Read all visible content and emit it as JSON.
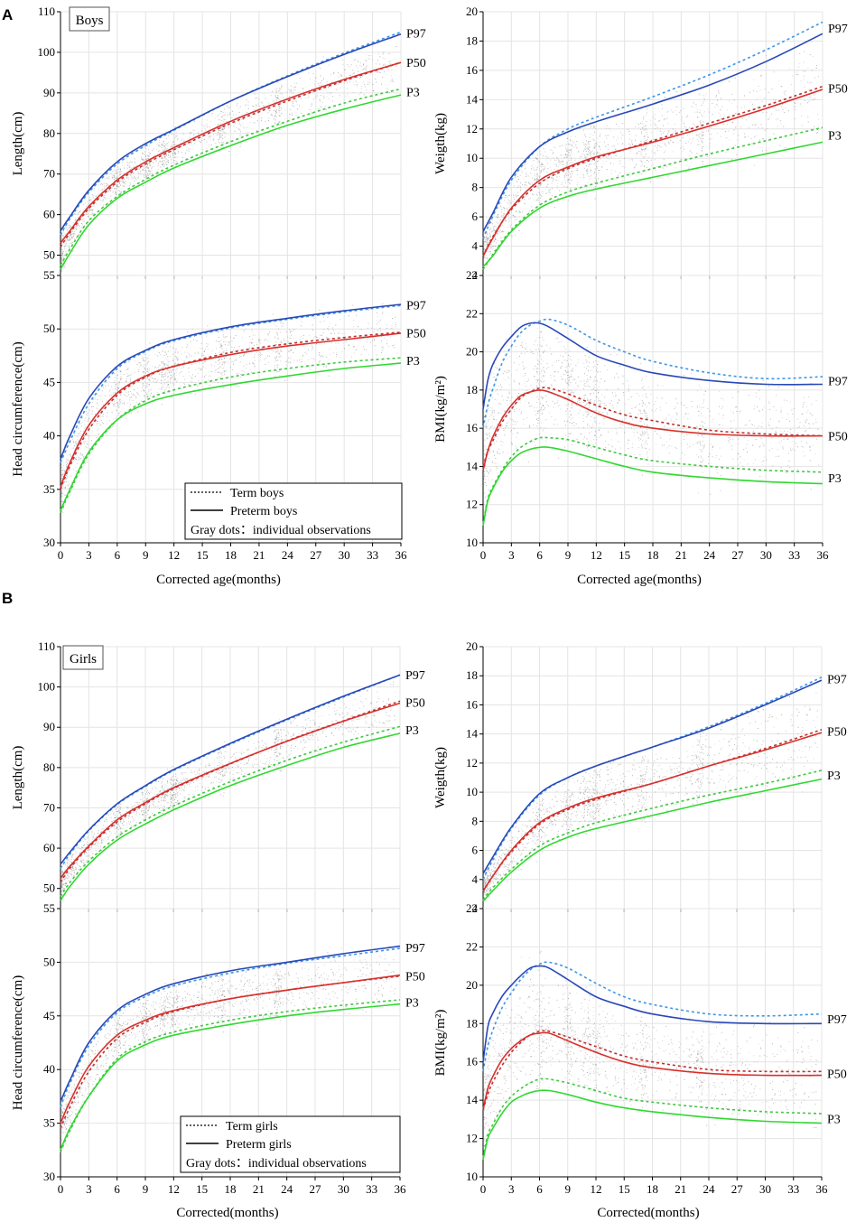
{
  "colors": {
    "p97": "#2848b8",
    "p97_term": "#3c96e6",
    "p50": "#d8302c",
    "p50_term": "#c03030",
    "p3": "#30d830",
    "p3_term": "#40c840",
    "dots": "#8a8a8a",
    "grid": "#e4e4e4",
    "axis": "#000000"
  },
  "figure": {
    "panel_A_letter": "A",
    "panel_B_letter": "B",
    "boys_label": "Boys",
    "girls_label": "Girls",
    "legend_boys": {
      "term": "Term boys",
      "preterm": "Preterm boys",
      "dots": "Gray dots：individual observations"
    },
    "legend_girls": {
      "term": "Term girls",
      "preterm": "Preterm girls",
      "dots": "Gray dots：individual observations"
    },
    "xlabel_A": "Corrected age(months)",
    "xlabel_B": "Corrected(months)"
  },
  "chart_data": [
    {
      "id": "boys_length",
      "type": "line",
      "title": "Boys",
      "ylabel": "Length(cm)",
      "xlim": [
        0,
        36
      ],
      "ylim": [
        45,
        110
      ],
      "yticks": [
        50,
        60,
        70,
        80,
        90,
        100,
        110
      ],
      "xticks": [
        0,
        3,
        6,
        9,
        12,
        15,
        18,
        21,
        24,
        27,
        30,
        33,
        36
      ],
      "x": [
        0,
        1,
        3,
        6,
        9,
        12,
        18,
        24,
        30,
        36
      ],
      "series": [
        {
          "name": "P97",
          "label": "P97",
          "preterm": [
            56.0,
            59.5,
            66.0,
            73.0,
            77.5,
            81.0,
            88.0,
            94.0,
            99.5,
            104.5
          ],
          "term": [
            55.0,
            59.0,
            65.5,
            72.5,
            77.0,
            80.8,
            88.0,
            94.2,
            99.8,
            105.0
          ]
        },
        {
          "name": "P50",
          "label": "P50",
          "preterm": [
            53.0,
            56.0,
            62.0,
            68.5,
            73.0,
            76.5,
            83.0,
            88.5,
            93.3,
            97.5
          ],
          "term": [
            52.0,
            55.5,
            61.5,
            68.0,
            72.5,
            76.0,
            82.5,
            88.0,
            93.0,
            97.5
          ]
        },
        {
          "name": "P3",
          "label": "P3",
          "preterm": [
            46.5,
            50.5,
            57.5,
            64.0,
            68.0,
            71.5,
            77.0,
            82.0,
            86.0,
            89.5
          ],
          "term": [
            47.5,
            51.5,
            58.5,
            64.5,
            68.7,
            72.2,
            78.0,
            83.0,
            87.5,
            91.0
          ]
        }
      ]
    },
    {
      "id": "boys_weight",
      "type": "line",
      "ylabel": "Weigth(kg)",
      "xlim": [
        0,
        36
      ],
      "ylim": [
        2,
        20
      ],
      "yticks": [
        2,
        4,
        6,
        8,
        10,
        12,
        14,
        16,
        18,
        20
      ],
      "xticks": [
        0,
        3,
        6,
        9,
        12,
        15,
        18,
        21,
        24,
        27,
        30,
        33,
        36
      ],
      "x": [
        0,
        1,
        3,
        6,
        9,
        12,
        18,
        24,
        30,
        36
      ],
      "series": [
        {
          "name": "P97",
          "label": "P97",
          "preterm": [
            5.0,
            6.2,
            8.7,
            10.8,
            11.8,
            12.5,
            13.7,
            15.0,
            16.6,
            18.5
          ],
          "term": [
            4.5,
            6.0,
            8.5,
            10.8,
            12.0,
            12.8,
            14.2,
            15.7,
            17.4,
            19.3
          ]
        },
        {
          "name": "P50",
          "label": "P50",
          "preterm": [
            3.3,
            4.5,
            6.6,
            8.5,
            9.4,
            10.1,
            11.1,
            12.2,
            13.4,
            14.7
          ],
          "term": [
            3.3,
            4.6,
            6.5,
            8.3,
            9.3,
            10.0,
            11.2,
            12.4,
            13.6,
            14.9
          ]
        },
        {
          "name": "P3",
          "label": "P3",
          "preterm": [
            2.6,
            3.3,
            5.0,
            6.6,
            7.4,
            7.9,
            8.7,
            9.5,
            10.3,
            11.1
          ],
          "term": [
            2.4,
            3.4,
            5.1,
            6.8,
            7.7,
            8.3,
            9.3,
            10.3,
            11.2,
            12.1
          ]
        }
      ]
    },
    {
      "id": "boys_head",
      "type": "line",
      "ylabel": "Head circumference(cm)",
      "xlim": [
        0,
        36
      ],
      "ylim": [
        30,
        55
      ],
      "yticks": [
        30,
        35,
        40,
        45,
        50,
        55
      ],
      "xticks": [
        0,
        3,
        6,
        9,
        12,
        15,
        18,
        21,
        24,
        27,
        30,
        33,
        36
      ],
      "x": [
        0,
        1,
        3,
        6,
        9,
        12,
        18,
        24,
        30,
        36
      ],
      "series": [
        {
          "name": "P97",
          "label": "P97",
          "preterm": [
            37.8,
            40.0,
            43.5,
            46.5,
            48.0,
            49.0,
            50.2,
            51.0,
            51.7,
            52.3
          ],
          "term": [
            37.5,
            39.5,
            43.0,
            46.3,
            47.9,
            48.9,
            50.1,
            50.9,
            51.6,
            52.2
          ]
        },
        {
          "name": "P50",
          "label": "P50",
          "preterm": [
            35.2,
            37.5,
            41.0,
            44.0,
            45.6,
            46.5,
            47.6,
            48.4,
            49.0,
            49.6
          ],
          "term": [
            35.0,
            37.2,
            40.6,
            43.8,
            45.5,
            46.5,
            47.8,
            48.6,
            49.2,
            49.7
          ]
        },
        {
          "name": "P3",
          "label": "P3",
          "preterm": [
            33.0,
            35.0,
            38.5,
            41.5,
            43.0,
            43.8,
            44.8,
            45.6,
            46.3,
            46.8
          ],
          "term": [
            32.8,
            34.8,
            38.3,
            41.5,
            43.3,
            44.3,
            45.5,
            46.3,
            46.9,
            47.3
          ]
        }
      ]
    },
    {
      "id": "boys_bmi",
      "type": "line",
      "ylabel": "BMI(kg/m²)",
      "xlim": [
        0,
        36
      ],
      "ylim": [
        10,
        24
      ],
      "yticks": [
        10,
        12,
        14,
        16,
        18,
        20,
        22,
        24
      ],
      "xticks": [
        0,
        3,
        6,
        9,
        12,
        15,
        18,
        21,
        24,
        27,
        30,
        33,
        36
      ],
      "x": [
        0,
        0.5,
        1,
        2,
        3,
        4,
        5,
        6,
        7,
        9,
        12,
        15,
        18,
        24,
        30,
        36
      ],
      "series": [
        {
          "name": "P97",
          "label": "P97",
          "preterm": [
            17.0,
            18.5,
            19.3,
            20.2,
            20.8,
            21.3,
            21.5,
            21.5,
            21.3,
            20.7,
            19.8,
            19.3,
            18.9,
            18.5,
            18.3,
            18.3
          ],
          "term": [
            16.0,
            17.2,
            18.0,
            19.4,
            20.3,
            21.0,
            21.4,
            21.6,
            21.7,
            21.4,
            20.6,
            20.0,
            19.5,
            18.9,
            18.6,
            18.7
          ]
        },
        {
          "name": "P50",
          "label": "P50",
          "preterm": [
            13.8,
            14.8,
            15.5,
            16.5,
            17.2,
            17.7,
            17.9,
            18.0,
            17.9,
            17.5,
            16.8,
            16.3,
            16.0,
            15.7,
            15.6,
            15.6
          ],
          "term": [
            14.0,
            14.8,
            15.3,
            16.3,
            17.0,
            17.6,
            17.9,
            18.1,
            18.1,
            17.8,
            17.2,
            16.7,
            16.4,
            15.9,
            15.7,
            15.6
          ]
        },
        {
          "name": "P3",
          "label": "P3",
          "preterm": [
            10.9,
            12.2,
            12.8,
            13.7,
            14.3,
            14.7,
            14.9,
            15.0,
            15.0,
            14.8,
            14.4,
            14.0,
            13.7,
            13.4,
            13.2,
            13.1
          ],
          "term": [
            11.0,
            12.3,
            12.9,
            13.8,
            14.5,
            15.0,
            15.3,
            15.5,
            15.5,
            15.4,
            15.0,
            14.6,
            14.3,
            14.0,
            13.8,
            13.7
          ]
        }
      ]
    },
    {
      "id": "girls_length",
      "type": "line",
      "title": "Girls",
      "ylabel": "Length(cm)",
      "xlim": [
        0,
        36
      ],
      "ylim": [
        45,
        110
      ],
      "yticks": [
        50,
        60,
        70,
        80,
        90,
        100,
        110
      ],
      "xticks": [
        0,
        3,
        6,
        9,
        12,
        15,
        18,
        21,
        24,
        27,
        30,
        33,
        36
      ],
      "x": [
        0,
        1,
        3,
        6,
        9,
        12,
        18,
        24,
        30,
        36
      ],
      "series": [
        {
          "name": "P97",
          "label": "P97",
          "preterm": [
            56.0,
            59.0,
            64.5,
            71.0,
            75.5,
            79.5,
            86.0,
            92.0,
            97.7,
            103.0
          ],
          "term": [
            55.0,
            58.5,
            64.3,
            70.8,
            75.3,
            79.3,
            85.8,
            91.8,
            97.5,
            103.0
          ]
        },
        {
          "name": "P50",
          "label": "P50",
          "preterm": [
            52.5,
            55.5,
            60.5,
            67.0,
            71.3,
            75.0,
            81.0,
            86.5,
            91.5,
            96.0
          ],
          "term": [
            51.5,
            55.0,
            60.2,
            66.5,
            71.0,
            74.8,
            80.9,
            86.6,
            91.6,
            96.5
          ]
        },
        {
          "name": "P3",
          "label": "P3",
          "preterm": [
            47.0,
            50.5,
            56.0,
            62.0,
            66.0,
            69.5,
            75.5,
            80.5,
            85.0,
            88.5
          ],
          "term": [
            48.0,
            51.5,
            56.8,
            62.8,
            67.0,
            70.5,
            76.5,
            81.8,
            86.3,
            90.2
          ]
        }
      ]
    },
    {
      "id": "girls_weight",
      "type": "line",
      "ylabel": "Weigth(kg)",
      "xlim": [
        0,
        36
      ],
      "ylim": [
        2,
        20
      ],
      "yticks": [
        2,
        4,
        6,
        8,
        10,
        12,
        14,
        16,
        18,
        20
      ],
      "xticks": [
        0,
        3,
        6,
        9,
        12,
        15,
        18,
        21,
        24,
        27,
        30,
        33,
        36
      ],
      "x": [
        0,
        1,
        3,
        6,
        9,
        12,
        18,
        24,
        30,
        36
      ],
      "series": [
        {
          "name": "P97",
          "label": "P97",
          "preterm": [
            4.4,
            5.5,
            7.6,
            9.9,
            11.0,
            11.8,
            13.1,
            14.4,
            16.0,
            17.7
          ],
          "term": [
            4.0,
            5.3,
            7.5,
            9.8,
            11.0,
            11.8,
            13.1,
            14.5,
            16.1,
            17.9
          ]
        },
        {
          "name": "P50",
          "label": "P50",
          "preterm": [
            3.2,
            4.2,
            6.0,
            7.9,
            8.9,
            9.6,
            10.6,
            11.8,
            12.9,
            14.1
          ],
          "term": [
            3.2,
            4.2,
            5.9,
            7.8,
            8.8,
            9.5,
            10.6,
            11.8,
            13.0,
            14.3
          ]
        },
        {
          "name": "P3",
          "label": "P3",
          "preterm": [
            2.5,
            3.2,
            4.5,
            6.0,
            6.9,
            7.5,
            8.4,
            9.3,
            10.1,
            10.9
          ],
          "term": [
            2.6,
            3.4,
            4.7,
            6.3,
            7.2,
            7.9,
            8.9,
            9.8,
            10.6,
            11.5
          ]
        }
      ]
    },
    {
      "id": "girls_head",
      "type": "line",
      "ylabel": "Head circumference(cm)",
      "xlim": [
        0,
        36
      ],
      "ylim": [
        30,
        55
      ],
      "yticks": [
        30,
        35,
        40,
        45,
        50,
        55
      ],
      "xticks": [
        0,
        3,
        6,
        9,
        12,
        15,
        18,
        21,
        24,
        27,
        30,
        33,
        36
      ],
      "x": [
        0,
        1,
        3,
        6,
        9,
        12,
        18,
        24,
        30,
        36
      ],
      "series": [
        {
          "name": "P97",
          "label": "P97",
          "preterm": [
            37.0,
            39.0,
            42.5,
            45.5,
            47.0,
            48.0,
            49.2,
            50.0,
            50.8,
            51.5
          ],
          "term": [
            36.5,
            38.7,
            42.2,
            45.3,
            46.8,
            47.8,
            49.0,
            49.9,
            50.6,
            51.3
          ]
        },
        {
          "name": "P50",
          "label": "P50",
          "preterm": [
            35.0,
            37.0,
            40.3,
            43.2,
            44.6,
            45.5,
            46.6,
            47.4,
            48.1,
            48.8
          ],
          "term": [
            34.5,
            36.5,
            39.8,
            42.9,
            44.4,
            45.4,
            46.6,
            47.4,
            48.1,
            48.7
          ]
        },
        {
          "name": "P3",
          "label": "P3",
          "preterm": [
            32.5,
            34.5,
            37.5,
            40.8,
            42.3,
            43.2,
            44.2,
            45.0,
            45.6,
            46.1
          ],
          "term": [
            32.3,
            34.3,
            37.5,
            41.0,
            42.6,
            43.5,
            44.6,
            45.4,
            46.0,
            46.5
          ]
        }
      ]
    },
    {
      "id": "girls_bmi",
      "type": "line",
      "ylabel": "BMI(kg/m²)",
      "xlim": [
        0,
        36
      ],
      "ylim": [
        10,
        24
      ],
      "yticks": [
        10,
        12,
        14,
        16,
        18,
        20,
        22,
        24
      ],
      "xticks": [
        0,
        3,
        6,
        9,
        12,
        15,
        18,
        21,
        24,
        27,
        30,
        33,
        36
      ],
      "x": [
        0,
        0.5,
        1,
        2,
        3,
        4,
        5,
        6,
        7,
        9,
        12,
        15,
        18,
        24,
        30,
        36
      ],
      "series": [
        {
          "name": "P97",
          "label": "P97",
          "preterm": [
            16.0,
            17.8,
            18.5,
            19.4,
            20.0,
            20.5,
            20.9,
            21.0,
            20.9,
            20.3,
            19.4,
            18.9,
            18.5,
            18.1,
            18.0,
            18.0
          ],
          "term": [
            15.5,
            16.8,
            17.6,
            18.8,
            19.6,
            20.3,
            20.8,
            21.1,
            21.2,
            20.9,
            20.1,
            19.4,
            19.0,
            18.5,
            18.4,
            18.5
          ]
        },
        {
          "name": "P50",
          "label": "P50",
          "preterm": [
            13.5,
            14.6,
            15.2,
            16.1,
            16.7,
            17.1,
            17.4,
            17.5,
            17.5,
            17.1,
            16.5,
            16.0,
            15.7,
            15.4,
            15.3,
            15.3
          ],
          "term": [
            13.5,
            14.3,
            14.9,
            15.8,
            16.5,
            17.0,
            17.4,
            17.6,
            17.6,
            17.3,
            16.8,
            16.3,
            16.0,
            15.6,
            15.5,
            15.5
          ]
        },
        {
          "name": "P3",
          "label": "P3",
          "preterm": [
            10.9,
            12.0,
            12.5,
            13.3,
            13.9,
            14.2,
            14.4,
            14.5,
            14.5,
            14.3,
            13.9,
            13.6,
            13.4,
            13.1,
            12.9,
            12.8
          ],
          "term": [
            11.0,
            12.2,
            12.7,
            13.6,
            14.2,
            14.6,
            14.9,
            15.1,
            15.1,
            14.9,
            14.5,
            14.1,
            13.9,
            13.6,
            13.4,
            13.3
          ]
        }
      ]
    }
  ]
}
